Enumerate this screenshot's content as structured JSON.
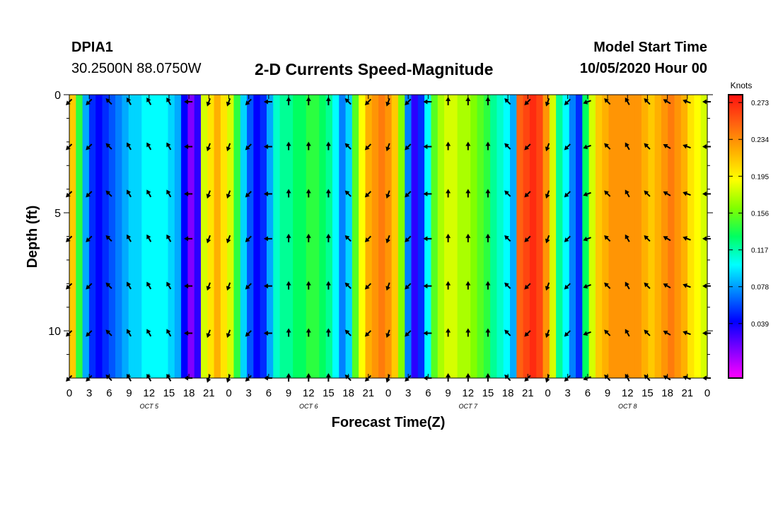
{
  "header": {
    "station_id": "DPIA1",
    "coordinates": "30.2500N 88.0750W",
    "title": "2-D Currents Speed-Magnitude",
    "model_start_label": "Model Start Time",
    "model_start_value": "10/05/2020 Hour 00"
  },
  "chart_data": {
    "type": "heatmap",
    "title": "2-D Currents Speed-Magnitude",
    "xlabel": "Forecast Time(Z)",
    "ylabel": "Depth (ft)",
    "x_ticks": [
      "0",
      "3",
      "6",
      "9",
      "12",
      "15",
      "18",
      "21",
      "0",
      "3",
      "6",
      "9",
      "12",
      "15",
      "18",
      "21",
      "0",
      "3",
      "6",
      "9",
      "12",
      "15",
      "18",
      "21",
      "0",
      "3",
      "6",
      "9",
      "12",
      "15",
      "18",
      "21",
      "0"
    ],
    "x_day_labels": [
      "OCT 5",
      "OCT 6",
      "OCT 7",
      "OCT 8"
    ],
    "xlim_hours": [
      0,
      96
    ],
    "y_ticks": [
      "0",
      "5",
      "10"
    ],
    "ylim_ft": [
      0,
      12
    ],
    "y_inverted": true,
    "colorbar": {
      "unit": "Knots",
      "ticks": [
        "0.273",
        "0.234",
        "0.195",
        "0.156",
        "0.117",
        "0.078",
        "0.039"
      ],
      "colors": [
        "#ff1010",
        "#ff6010",
        "#ffb000",
        "#ffff00",
        "#80ff00",
        "#00ff60",
        "#00ffff",
        "#0080ff",
        "#0000ff",
        "#8000ff",
        "#ff00ff"
      ]
    },
    "depth_rows_ft": [
      0.3,
      2.2,
      4.2,
      6.1,
      8.1,
      10.1,
      12.0
    ],
    "speed_by_hour_knots": [
      0.23,
      0.16,
      0.1,
      0.07,
      0.06,
      0.07,
      0.08,
      0.09,
      0.1,
      0.11,
      0.11,
      0.12,
      0.12,
      0.12,
      0.12,
      0.11,
      0.1,
      0.06,
      0.03,
      0.05,
      0.2,
      0.22,
      0.24,
      0.22,
      0.2,
      0.16,
      0.11,
      0.08,
      0.06,
      0.07,
      0.1,
      0.13,
      0.14,
      0.14,
      0.15,
      0.15,
      0.16,
      0.16,
      0.15,
      0.14,
      0.12,
      0.09,
      0.11,
      0.17,
      0.21,
      0.24,
      0.25,
      0.26,
      0.25,
      0.23,
      0.18,
      0.09,
      0.05,
      0.07,
      0.12,
      0.17,
      0.19,
      0.2,
      0.2,
      0.19,
      0.19,
      0.18,
      0.17,
      0.16,
      0.14,
      0.13,
      0.12,
      0.1,
      0.27,
      0.28,
      0.29,
      0.28,
      0.25,
      0.2,
      0.14,
      0.12,
      0.09,
      0.07,
      0.15,
      0.2,
      0.23,
      0.24,
      0.25,
      0.25,
      0.25,
      0.25,
      0.25,
      0.24,
      0.23,
      0.24,
      0.25,
      0.26,
      0.25,
      0.24,
      0.22,
      0.21,
      0.2
    ],
    "arrow_hours": [
      0,
      3,
      6,
      9,
      12,
      15,
      18,
      21,
      24,
      27,
      30,
      33,
      36,
      39,
      42,
      45,
      48,
      51,
      54,
      57,
      60,
      63,
      66,
      69,
      72,
      75,
      78,
      81,
      84,
      87,
      90,
      93,
      96
    ],
    "arrow_direction_deg": [
      225,
      225,
      315,
      330,
      330,
      330,
      270,
      200,
      200,
      225,
      270,
      0,
      0,
      0,
      315,
      225,
      200,
      225,
      270,
      0,
      0,
      0,
      315,
      225,
      200,
      225,
      250,
      315,
      330,
      315,
      300,
      290,
      270
    ]
  }
}
